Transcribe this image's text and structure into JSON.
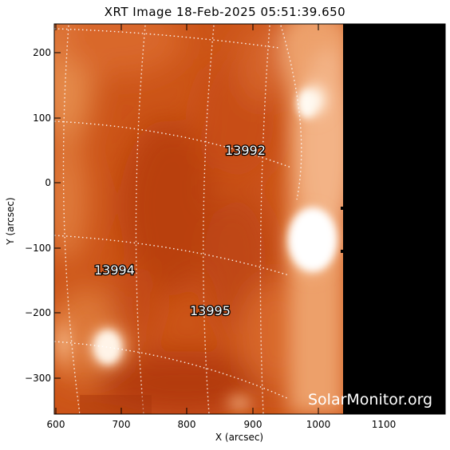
{
  "title": "XRT Image 18-Feb-2025 05:51:39.650",
  "xlabel": "X (arcsec)",
  "ylabel": "Y (arcsec)",
  "x_ticks": [
    "600",
    "700",
    "800",
    "900",
    "1000",
    "1100"
  ],
  "y_ticks": [
    "200",
    "100",
    "0",
    "−100",
    "−200",
    "−300"
  ],
  "active_regions": [
    "13992",
    "13994",
    "13995"
  ],
  "watermark": "SolarMonitor.org",
  "colors": {
    "sun_bright": "#fff4e6",
    "sun_mid": "#e4702a",
    "sun_dark": "#b53c0c",
    "sky": "#000000"
  }
}
